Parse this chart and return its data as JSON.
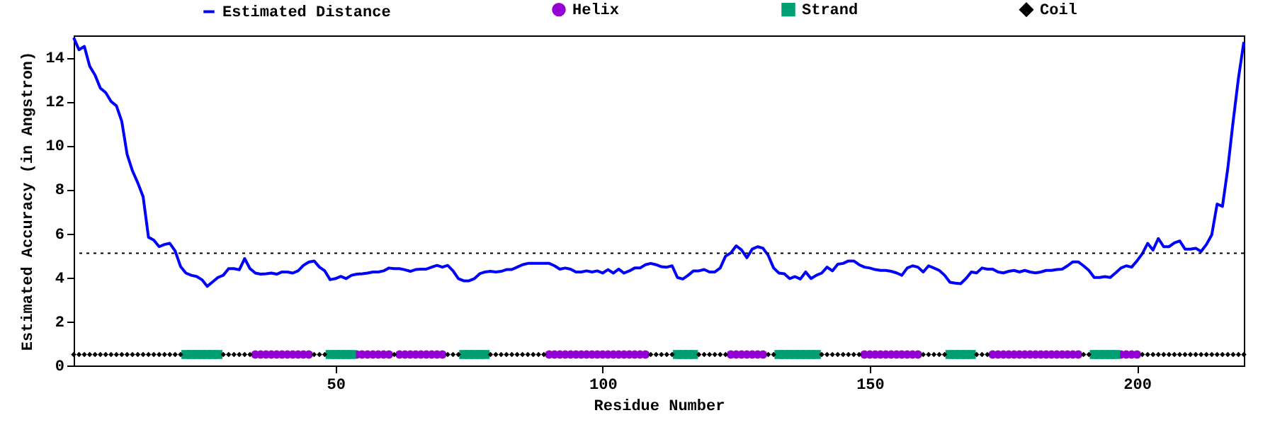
{
  "chart_data": {
    "type": "line",
    "xlabel": "Residue Number",
    "ylabel": "Estimated Accuracy (in Angstron)",
    "xlim": [
      1,
      220
    ],
    "xticks": [
      50,
      100,
      150,
      200
    ],
    "ylim": [
      0,
      15
    ],
    "yticks": [
      0,
      2,
      4,
      6,
      8,
      10,
      12,
      14
    ],
    "grid": false,
    "legend": "top",
    "x": [
      1,
      2,
      3,
      4,
      5,
      6,
      7,
      8,
      9,
      10,
      11,
      12,
      13,
      14,
      15,
      16,
      17,
      18,
      19,
      20,
      21,
      22,
      23,
      24,
      25,
      26,
      27,
      28,
      29,
      30,
      31,
      32,
      33,
      34,
      35,
      36,
      37,
      38,
      39,
      40,
      41,
      42,
      43,
      44,
      45,
      46,
      47,
      48,
      49,
      50,
      51,
      52,
      53,
      54,
      55,
      56,
      57,
      58,
      59,
      60,
      61,
      62,
      63,
      64,
      65,
      66,
      67,
      68,
      69,
      70,
      71,
      72,
      73,
      74,
      75,
      76,
      77,
      78,
      79,
      80,
      81,
      82,
      83,
      84,
      85,
      86,
      87,
      88,
      89,
      90,
      91,
      92,
      93,
      94,
      95,
      96,
      97,
      98,
      99,
      100,
      101,
      102,
      103,
      104,
      105,
      106,
      107,
      108,
      109,
      110,
      111,
      112,
      113,
      114,
      115,
      116,
      117,
      118,
      119,
      120,
      121,
      122,
      123,
      124,
      125,
      126,
      127,
      128,
      129,
      130,
      131,
      132,
      133,
      134,
      135,
      136,
      137,
      138,
      139,
      140,
      141,
      142,
      143,
      144,
      145,
      146,
      147,
      148,
      149,
      150,
      151,
      152,
      153,
      154,
      155,
      156,
      157,
      158,
      159,
      160,
      161,
      162,
      163,
      164,
      165,
      166,
      167,
      168,
      169,
      170,
      171,
      172,
      173,
      174,
      175,
      176,
      177,
      178,
      179,
      180,
      181,
      182,
      183,
      184,
      185,
      186,
      187,
      188,
      189,
      190,
      191,
      192,
      193,
      194,
      195,
      196,
      197,
      198,
      199,
      200,
      201,
      202,
      203,
      204,
      205,
      206,
      207,
      208,
      209,
      210,
      211,
      212,
      213,
      214,
      215,
      216,
      217,
      218,
      219,
      220
    ],
    "series": [
      {
        "name": "Estimated Distance",
        "color": "#0000ff",
        "line_style": "solid",
        "values": [
          14.9,
          14.35,
          14.5,
          13.6,
          13.2,
          12.6,
          12.4,
          12.0,
          11.8,
          11.1,
          9.6,
          8.85,
          8.3,
          7.67,
          5.83,
          5.7,
          5.4,
          5.5,
          5.55,
          5.2,
          4.5,
          4.2,
          4.1,
          4.05,
          3.9,
          3.6,
          3.8,
          4.0,
          4.1,
          4.4,
          4.4,
          4.35,
          4.86,
          4.4,
          4.2,
          4.15,
          4.17,
          4.2,
          4.15,
          4.25,
          4.25,
          4.2,
          4.3,
          4.55,
          4.7,
          4.75,
          4.47,
          4.3,
          3.9,
          3.95,
          4.05,
          3.95,
          4.1,
          4.15,
          4.17,
          4.2,
          4.25,
          4.25,
          4.3,
          4.43,
          4.4,
          4.4,
          4.35,
          4.28,
          4.36,
          4.38,
          4.38,
          4.47,
          4.55,
          4.47,
          4.55,
          4.3,
          3.95,
          3.85,
          3.85,
          3.95,
          4.17,
          4.25,
          4.28,
          4.25,
          4.28,
          4.36,
          4.36,
          4.47,
          4.58,
          4.64,
          4.64,
          4.64,
          4.64,
          4.64,
          4.53,
          4.38,
          4.43,
          4.38,
          4.25,
          4.25,
          4.3,
          4.25,
          4.3,
          4.2,
          4.36,
          4.2,
          4.38,
          4.2,
          4.3,
          4.43,
          4.43,
          4.58,
          4.64,
          4.58,
          4.49,
          4.47,
          4.53,
          4.0,
          3.93,
          4.1,
          4.3,
          4.3,
          4.36,
          4.25,
          4.25,
          4.43,
          4.97,
          5.12,
          5.44,
          5.25,
          4.9,
          5.29,
          5.4,
          5.33,
          5.0,
          4.43,
          4.2,
          4.17,
          3.95,
          4.04,
          3.93,
          4.25,
          3.95,
          4.1,
          4.2,
          4.47,
          4.3,
          4.6,
          4.64,
          4.75,
          4.75,
          4.58,
          4.47,
          4.43,
          4.36,
          4.32,
          4.32,
          4.28,
          4.21,
          4.1,
          4.43,
          4.53,
          4.47,
          4.25,
          4.53,
          4.43,
          4.32,
          4.1,
          3.78,
          3.74,
          3.72,
          3.95,
          4.25,
          4.21,
          4.43,
          4.38,
          4.38,
          4.25,
          4.21,
          4.28,
          4.32,
          4.25,
          4.32,
          4.25,
          4.21,
          4.25,
          4.32,
          4.32,
          4.36,
          4.38,
          4.53,
          4.71,
          4.71,
          4.53,
          4.32,
          4.0,
          4.0,
          4.04,
          4.0,
          4.21,
          4.43,
          4.53,
          4.47,
          4.75,
          5.08,
          5.55,
          5.25,
          5.77,
          5.4,
          5.4,
          5.57,
          5.66,
          5.29,
          5.29,
          5.33,
          5.18,
          5.5,
          5.94,
          7.34,
          7.23,
          8.96,
          11.1,
          13.07,
          14.7
        ]
      },
      {
        "name": "Helix",
        "type": "scatter",
        "color": "#9400d3",
        "marker": "circle",
        "x": [
          35,
          36,
          37,
          38,
          39,
          40,
          41,
          42,
          43,
          44,
          45,
          54,
          55,
          56,
          57,
          58,
          59,
          60,
          62,
          63,
          64,
          65,
          66,
          67,
          68,
          69,
          70,
          90,
          91,
          92,
          93,
          94,
          95,
          96,
          97,
          98,
          99,
          100,
          101,
          102,
          103,
          104,
          105,
          106,
          107,
          108,
          124,
          125,
          126,
          127,
          128,
          129,
          130,
          149,
          150,
          151,
          152,
          153,
          154,
          155,
          156,
          157,
          158,
          159,
          173,
          174,
          175,
          176,
          177,
          178,
          179,
          180,
          181,
          182,
          183,
          184,
          185,
          186,
          187,
          188,
          189,
          197,
          198,
          199,
          200
        ],
        "values": [
          0.5,
          0.5,
          0.5,
          0.5,
          0.5,
          0.5,
          0.5,
          0.5,
          0.5,
          0.5,
          0.5,
          0.5,
          0.5,
          0.5,
          0.5,
          0.5,
          0.5,
          0.5,
          0.5,
          0.5,
          0.5,
          0.5,
          0.5,
          0.5,
          0.5,
          0.5,
          0.5,
          0.5,
          0.5,
          0.5,
          0.5,
          0.5,
          0.5,
          0.5,
          0.5,
          0.5,
          0.5,
          0.5,
          0.5,
          0.5,
          0.5,
          0.5,
          0.5,
          0.5,
          0.5,
          0.5,
          0.5,
          0.5,
          0.5,
          0.5,
          0.5,
          0.5,
          0.5,
          0.5,
          0.5,
          0.5,
          0.5,
          0.5,
          0.5,
          0.5,
          0.5,
          0.5,
          0.5,
          0.5,
          0.5,
          0.5,
          0.5,
          0.5,
          0.5,
          0.5,
          0.5,
          0.5,
          0.5,
          0.5,
          0.5,
          0.5,
          0.5,
          0.5,
          0.5,
          0.5,
          0.5,
          0.5,
          0.5,
          0.5,
          0.5
        ]
      },
      {
        "name": "Strand",
        "type": "scatter",
        "color": "#009e73",
        "marker": "square",
        "x": [
          22,
          23,
          24,
          25,
          26,
          27,
          28,
          49,
          50,
          51,
          52,
          53,
          74,
          75,
          76,
          77,
          78,
          114,
          115,
          116,
          117,
          133,
          134,
          135,
          136,
          137,
          138,
          139,
          140,
          165,
          166,
          167,
          168,
          169,
          192,
          193,
          194,
          195,
          196
        ],
        "values": [
          0.5,
          0.5,
          0.5,
          0.5,
          0.5,
          0.5,
          0.5,
          0.5,
          0.5,
          0.5,
          0.5,
          0.5,
          0.5,
          0.5,
          0.5,
          0.5,
          0.5,
          0.5,
          0.5,
          0.5,
          0.5,
          0.5,
          0.5,
          0.5,
          0.5,
          0.5,
          0.5,
          0.5,
          0.5,
          0.5,
          0.5,
          0.5,
          0.5,
          0.5,
          0.5,
          0.5,
          0.5,
          0.5,
          0.5
        ]
      },
      {
        "name": "Coil",
        "type": "scatter",
        "color": "#000000",
        "marker": "diamond",
        "x": [
          1,
          2,
          3,
          4,
          5,
          6,
          7,
          8,
          9,
          10,
          11,
          12,
          13,
          14,
          15,
          16,
          17,
          18,
          19,
          20,
          21,
          29,
          30,
          31,
          32,
          33,
          34,
          46,
          47,
          48,
          61,
          71,
          72,
          73,
          79,
          80,
          81,
          82,
          83,
          84,
          85,
          86,
          87,
          88,
          89,
          109,
          110,
          111,
          112,
          113,
          118,
          119,
          120,
          121,
          122,
          123,
          131,
          132,
          141,
          142,
          143,
          144,
          145,
          146,
          147,
          148,
          160,
          161,
          162,
          163,
          164,
          170,
          171,
          172,
          190,
          191,
          201,
          202,
          203,
          204,
          205,
          206,
          207,
          208,
          209,
          210,
          211,
          212,
          213,
          214,
          215,
          216,
          217,
          218,
          219,
          220
        ],
        "values": [
          0.5,
          0.5,
          0.5,
          0.5,
          0.5,
          0.5,
          0.5,
          0.5,
          0.5,
          0.5,
          0.5,
          0.5,
          0.5,
          0.5,
          0.5,
          0.5,
          0.5,
          0.5,
          0.5,
          0.5,
          0.5,
          0.5,
          0.5,
          0.5,
          0.5,
          0.5,
          0.5,
          0.5,
          0.5,
          0.5,
          0.5,
          0.5,
          0.5,
          0.5,
          0.5,
          0.5,
          0.5,
          0.5,
          0.5,
          0.5,
          0.5,
          0.5,
          0.5,
          0.5,
          0.5,
          0.5,
          0.5,
          0.5,
          0.5,
          0.5,
          0.5,
          0.5,
          0.5,
          0.5,
          0.5,
          0.5,
          0.5,
          0.5,
          0.5,
          0.5,
          0.5,
          0.5,
          0.5,
          0.5,
          0.5,
          0.5,
          0.5,
          0.5,
          0.5,
          0.5,
          0.5,
          0.5,
          0.5,
          0.5,
          0.5,
          0.5,
          0.5,
          0.5,
          0.5,
          0.5,
          0.5,
          0.5,
          0.5,
          0.5,
          0.5,
          0.5,
          0.5,
          0.5,
          0.5,
          0.5,
          0.5,
          0.5,
          0.5,
          0.5,
          0.5,
          0.5
        ]
      }
    ],
    "ref_lines": [
      {
        "axis": "y",
        "value": 5.1,
        "color": "#000000",
        "line_style": "dotted"
      }
    ]
  }
}
